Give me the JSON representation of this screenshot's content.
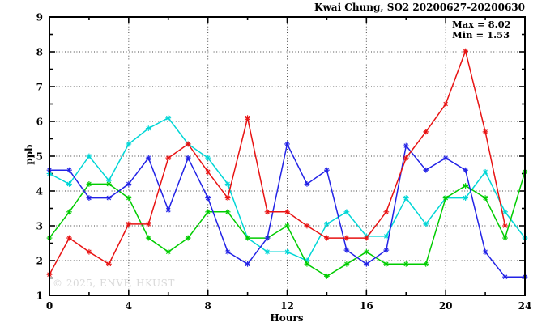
{
  "title": "Kwai Chung, SO2 20200627-20200630",
  "annotation": {
    "max_label": "Max = 8.02",
    "min_label": "Min = 1.53"
  },
  "watermark": "© 2025, ENVF, HKUST",
  "chart_data": {
    "type": "line",
    "title": "Kwai Chung, SO2 20200627-20200630",
    "xlabel": "Hours",
    "ylabel": "ppb",
    "xlim": [
      0,
      24
    ],
    "ylim": [
      1,
      9
    ],
    "x_major_ticks": [
      0,
      4,
      8,
      12,
      16,
      20,
      24
    ],
    "x_minor_step": 2,
    "y_major_ticks": [
      1,
      2,
      3,
      4,
      5,
      6,
      7,
      8,
      9
    ],
    "y_minor_step": 0.5,
    "grid_x_lines": [
      4,
      8,
      12,
      16,
      20
    ],
    "grid_y_lines": [
      2,
      3,
      4,
      5,
      6,
      7,
      8
    ],
    "legend": "none",
    "marker": "asterisk",
    "max_value": 8.02,
    "min_value": 1.53,
    "x": [
      0,
      1,
      2,
      3,
      4,
      5,
      6,
      7,
      8,
      9,
      10,
      11,
      12,
      13,
      14,
      15,
      16,
      17,
      18,
      19,
      20,
      21,
      22,
      23,
      24
    ],
    "series": [
      {
        "name": "series-cyan",
        "color": "#00d6d6",
        "values": [
          4.5,
          4.2,
          5.0,
          4.3,
          5.35,
          5.8,
          6.1,
          5.35,
          4.95,
          4.2,
          2.65,
          2.25,
          2.25,
          2.0,
          3.05,
          3.4,
          2.7,
          2.7,
          3.8,
          3.05,
          3.8,
          3.8,
          4.55,
          3.4,
          2.65
        ]
      },
      {
        "name": "series-green",
        "color": "#00cc00",
        "values": [
          2.65,
          3.4,
          4.2,
          4.2,
          3.8,
          2.65,
          2.25,
          2.65,
          3.4,
          3.4,
          2.65,
          2.65,
          3.0,
          1.9,
          1.55,
          1.9,
          2.25,
          1.9,
          1.9,
          1.9,
          3.8,
          4.15,
          3.8,
          2.65,
          4.55
        ]
      },
      {
        "name": "series-blue",
        "color": "#2222e6",
        "values": [
          4.6,
          4.6,
          3.8,
          3.8,
          4.2,
          4.95,
          3.45,
          4.95,
          3.8,
          2.25,
          1.9,
          2.65,
          5.35,
          4.2,
          4.6,
          2.3,
          1.9,
          2.3,
          5.3,
          4.6,
          4.95,
          4.6,
          2.25,
          1.53,
          1.53
        ]
      },
      {
        "name": "series-red",
        "color": "#e81212",
        "values": [
          1.6,
          2.65,
          2.25,
          1.9,
          3.05,
          3.05,
          4.95,
          5.35,
          4.55,
          3.8,
          6.1,
          3.4,
          3.4,
          3.0,
          2.65,
          2.65,
          2.65,
          3.4,
          4.95,
          5.7,
          6.5,
          8.02,
          5.7,
          3.0,
          null
        ]
      }
    ]
  }
}
